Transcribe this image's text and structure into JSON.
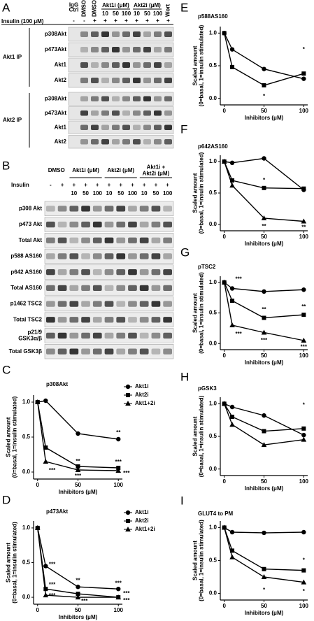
{
  "panel_a": {
    "letter": "A",
    "lane_labels": [
      [
        "IgG",
        "Ctrl"
      ],
      "DMSO",
      "DMSO",
      null,
      null,
      null,
      null,
      null,
      null,
      "Wort"
    ],
    "groups": [
      {
        "label": "Akt1i (μM)",
        "doses": [
          "10",
          "50",
          "100"
        ]
      },
      {
        "label": "Akt2i (μM)",
        "doses": [
          "10",
          "50",
          "100"
        ]
      }
    ],
    "insulin_label": "Insulin (100 μM)",
    "insulin": [
      "-",
      "-",
      "+",
      "+",
      "+",
      "+",
      "+",
      "+",
      "+",
      "+"
    ],
    "ip_groups": [
      {
        "label": "Akt1 IP",
        "rows": [
          "p308Akt",
          "p473Akt",
          "Akt1",
          "Akt2"
        ]
      },
      {
        "label": "Akt2 IP",
        "rows": [
          "p308Akt",
          "p473Akt",
          "Akt1",
          "Akt2"
        ]
      }
    ]
  },
  "panel_b": {
    "letter": "B",
    "groups": [
      {
        "label": "DMSO"
      },
      {
        "label": "Akt1i (μM)",
        "doses": [
          "10",
          "50",
          "100"
        ]
      },
      {
        "label": "Akt2i (μM)",
        "doses": [
          "10",
          "50",
          "100"
        ]
      },
      {
        "label": [
          "Akt1i +",
          "Akt2i (μM)"
        ],
        "doses": [
          "10",
          "50",
          "100"
        ]
      }
    ],
    "insulin_label": "Insulin",
    "insulin": [
      "-",
      "+",
      "+",
      "+",
      "+",
      "+",
      "+",
      "+",
      "+",
      "+",
      "+"
    ],
    "rows": [
      "p308 Akt",
      "p473 Akt",
      "Total Akt",
      "p588 AS160",
      "p642 AS160",
      "Total AS160",
      "p1462 TSC2",
      "Total TSC2",
      [
        "p21/9",
        "GSK3α/β"
      ],
      "Total GSK3β"
    ]
  },
  "chart_data": [
    {
      "type": "line",
      "panel": "C",
      "title": "p308Akt",
      "xlabel": "Inhibitors (μM)",
      "ylabel": [
        "Scaled amount",
        "(0=basal, 1=insulin stimulated)"
      ],
      "x": [
        0,
        10,
        50,
        100
      ],
      "xlim": [
        -5,
        105
      ],
      "xticks": [
        0,
        50,
        100
      ],
      "ylim": [
        -0.1,
        1.1
      ],
      "yticks": [
        {
          "value": 0,
          "label": "0.0"
        },
        {
          "value": 0.5,
          "label": "0.5"
        },
        {
          "value": 1,
          "label": "1.0"
        }
      ],
      "legend": "upper right",
      "series": [
        {
          "name": "Akt1i",
          "marker": "circle",
          "color": "#000000",
          "values": [
            1,
            1.02,
            0.55,
            0.47
          ]
        },
        {
          "name": "Akt2i",
          "marker": "square",
          "color": "#000000",
          "values": [
            1,
            0.35,
            0.08,
            0.06
          ]
        },
        {
          "name": "Akt1+2i",
          "marker": "triangle",
          "color": "#000000",
          "values": [
            1,
            0.15,
            0.03,
            0.02
          ]
        }
      ],
      "annotations": [
        {
          "text": "***",
          "x": 18,
          "y": 0.02
        },
        {
          "text": "**",
          "x": 50,
          "y": 0.15
        },
        {
          "text": "***",
          "x": 50,
          "y": -0.06
        },
        {
          "text": "**",
          "x": 100,
          "y": 0.56
        },
        {
          "text": "***",
          "x": 100,
          "y": 0.14
        },
        {
          "text": "***",
          "x": 110,
          "y": -0.02
        }
      ]
    },
    {
      "type": "line",
      "panel": "D",
      "title": "p473Akt",
      "xlabel": "Inhibitors (μM)",
      "ylabel": [
        "Scaled amount",
        "(0=basal, 1=insulin stimulated)"
      ],
      "x": [
        0,
        10,
        50,
        100
      ],
      "xlim": [
        -5,
        105
      ],
      "xticks": [
        0,
        50,
        100
      ],
      "ylim": [
        -0.1,
        1.1
      ],
      "yticks": [
        {
          "value": 0,
          "label": "0.0"
        },
        {
          "value": 0.5,
          "label": "0.5"
        },
        {
          "value": 1,
          "label": "1.0"
        }
      ],
      "legend": "upper right",
      "series": [
        {
          "name": "Akt1i",
          "marker": "circle",
          "color": "#000000",
          "values": [
            1,
            0.45,
            0.15,
            0.12
          ]
        },
        {
          "name": "Akt2i",
          "marker": "square",
          "color": "#000000",
          "values": [
            1,
            0.12,
            0.05,
            0
          ]
        },
        {
          "name": "Akt1+2i",
          "marker": "triangle",
          "color": "#000000",
          "values": [
            1,
            0.03,
            0,
            0
          ]
        }
      ],
      "annotations": [
        {
          "text": "***",
          "x": 18,
          "y": 0.47
        },
        {
          "text": "***",
          "x": 18,
          "y": 0.18
        },
        {
          "text": "***",
          "x": 18,
          "y": 0.02
        },
        {
          "text": "**",
          "x": 50,
          "y": 0.24
        },
        {
          "text": "***",
          "x": 58,
          "y": -0.06
        },
        {
          "text": "***",
          "x": 100,
          "y": 0.2
        },
        {
          "text": "***",
          "x": 110,
          "y": 0.05
        },
        {
          "text": "***",
          "x": 110,
          "y": -0.05
        }
      ]
    },
    {
      "type": "line",
      "panel": "E",
      "title": "p588AS160",
      "xlabel": "Inhibitors (μM)",
      "ylabel": [
        "Scaled amount",
        "(0=basal, 1=insulin stimulated)"
      ],
      "x": [
        0,
        10,
        50,
        100
      ],
      "xlim": [
        -5,
        105
      ],
      "xticks": [
        0,
        50,
        100
      ],
      "ylim": [
        -0.1,
        1.1
      ],
      "yticks": [
        {
          "value": 0,
          "label": "0.0"
        },
        {
          "value": 0.5,
          "label": "0.5"
        },
        {
          "value": 1,
          "label": "1.0"
        }
      ],
      "series": [
        {
          "marker": "circle",
          "color": "#000000",
          "values": [
            1,
            0.75,
            0.45,
            0.3
          ]
        },
        {
          "marker": "square",
          "color": "#000000",
          "values": [
            1,
            0.48,
            0.2,
            0.38
          ]
        }
      ],
      "annotations": [
        {
          "text": "*",
          "x": 50,
          "y": 0.03
        },
        {
          "text": "*",
          "x": 100,
          "y": 0.75
        }
      ]
    },
    {
      "type": "line",
      "panel": "F",
      "title": "p642AS160",
      "xlabel": "Inhibitors (μM)",
      "ylabel": [
        "Scaled amount",
        "(0=basal, 1=insulin stimulated)"
      ],
      "x": [
        0,
        10,
        50,
        100
      ],
      "xlim": [
        -5,
        105
      ],
      "xticks": [
        0,
        50,
        100
      ],
      "ylim": [
        -0.1,
        1.1
      ],
      "yticks": [
        {
          "value": 0,
          "label": "0.0"
        },
        {
          "value": 0.5,
          "label": "0.5"
        },
        {
          "value": 1,
          "label": "1.0"
        }
      ],
      "series": [
        {
          "marker": "circle",
          "color": "#000000",
          "values": [
            1,
            0.98,
            1.05,
            0.55
          ]
        },
        {
          "marker": "square",
          "color": "#000000",
          "values": [
            1,
            0.7,
            0.58,
            0.57
          ]
        },
        {
          "marker": "triangle",
          "color": "#000000",
          "values": [
            1,
            0.62,
            0.1,
            0.05
          ]
        }
      ],
      "annotations": [
        {
          "text": "*",
          "x": 50,
          "y": 0.7
        },
        {
          "text": "**",
          "x": 50,
          "y": -0.03
        },
        {
          "text": "**",
          "x": 100,
          "y": -0.05
        }
      ]
    },
    {
      "type": "line",
      "panel": "G",
      "title": "pTSC2",
      "xlabel": "Inhibitors (μM)",
      "ylabel": [
        "Scaled amount",
        "(0=basal, 1=insulin stimulated)"
      ],
      "x": [
        0,
        10,
        50,
        100
      ],
      "xlim": [
        -5,
        105
      ],
      "xticks": [
        0,
        50,
        100
      ],
      "ylim": [
        -0.1,
        1.1
      ],
      "yticks": [
        {
          "value": 0,
          "label": "0.0"
        },
        {
          "value": 0.5,
          "label": "0.5"
        },
        {
          "value": 1,
          "label": "1.0"
        }
      ],
      "series": [
        {
          "marker": "circle",
          "color": "#000000",
          "values": [
            1,
            0.9,
            0.85,
            0.88
          ]
        },
        {
          "marker": "square",
          "color": "#000000",
          "values": [
            1,
            0.7,
            0.42,
            0.47
          ]
        },
        {
          "marker": "triangle",
          "color": "#000000",
          "values": [
            1,
            0.3,
            0.18,
            0.05
          ]
        }
      ],
      "annotations": [
        {
          "text": "***",
          "x": 18,
          "y": 1.05
        },
        {
          "text": "***",
          "x": 18,
          "y": 0.15
        },
        {
          "text": "**",
          "x": 50,
          "y": 0.55
        },
        {
          "text": "***",
          "x": 50,
          "y": 0.05
        },
        {
          "text": "**",
          "x": 100,
          "y": 0.6
        },
        {
          "text": "***",
          "x": 100,
          "y": -0.06
        }
      ]
    },
    {
      "type": "line",
      "panel": "H",
      "title": "pGSK3",
      "xlabel": "Inhibitors (μM)",
      "ylabel": [
        "Scaled amount",
        "(0=basal, 1=insulin stimulated)"
      ],
      "x": [
        0,
        10,
        50,
        100
      ],
      "xlim": [
        -5,
        105
      ],
      "xticks": [
        0,
        50,
        100
      ],
      "ylim": [
        -0.1,
        1.1
      ],
      "yticks": [
        {
          "value": 0,
          "label": "0.0"
        },
        {
          "value": 0.5,
          "label": "0.5"
        },
        {
          "value": 1,
          "label": "1.0"
        }
      ],
      "series": [
        {
          "marker": "circle",
          "color": "#000000",
          "values": [
            1,
            0.95,
            0.82,
            0.52
          ]
        },
        {
          "marker": "square",
          "color": "#000000",
          "values": [
            1,
            0.8,
            0.58,
            0.62
          ]
        },
        {
          "marker": "triangle",
          "color": "#000000",
          "values": [
            1,
            0.68,
            0.37,
            0.45
          ]
        }
      ],
      "annotations": [
        {
          "text": "*",
          "x": 100,
          "y": 0.98
        }
      ]
    },
    {
      "type": "line",
      "panel": "I",
      "title": "GLUT4 to PM",
      "xlabel": "Inhibitors (μM)",
      "ylabel": [
        "Scaled amount",
        "(0=basal, 1=insulin stimulated)"
      ],
      "x": [
        0,
        10,
        50,
        100
      ],
      "xlim": [
        -5,
        105
      ],
      "xticks": [
        0,
        50,
        100
      ],
      "ylim": [
        -0.1,
        1.1
      ],
      "yticks": [
        {
          "value": 0,
          "label": "0.0"
        },
        {
          "value": 0.5,
          "label": "0.5"
        },
        {
          "value": 1,
          "label": "1.0"
        }
      ],
      "series": [
        {
          "marker": "circle",
          "color": "#000000",
          "values": [
            1,
            0.93,
            0.92,
            0.93
          ]
        },
        {
          "marker": "square",
          "color": "#000000",
          "values": [
            1,
            0.65,
            0.37,
            0.35
          ]
        },
        {
          "marker": "triangle",
          "color": "#000000",
          "values": [
            1,
            0.55,
            0.25,
            0.17
          ]
        }
      ],
      "annotations": [
        {
          "text": "*",
          "x": 50,
          "y": 0.05
        },
        {
          "text": "*",
          "x": 100,
          "y": 0.5
        },
        {
          "text": "*",
          "x": 100,
          "y": 0.03
        }
      ]
    }
  ]
}
